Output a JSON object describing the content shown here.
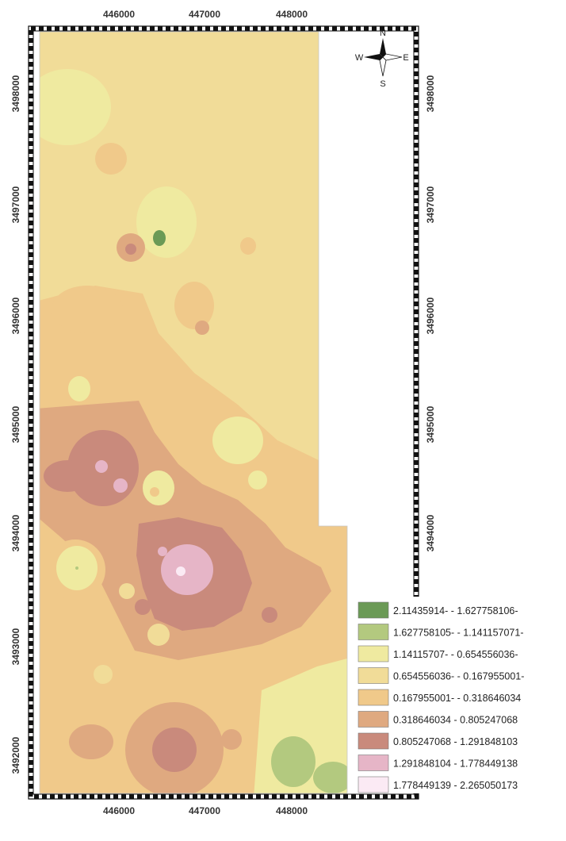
{
  "axes": {
    "x_ticks": [
      "446000",
      "447000",
      "448000"
    ],
    "y_ticks": [
      "3498000",
      "3497000",
      "3496000",
      "3495000",
      "3494000",
      "3493000",
      "3492000"
    ]
  },
  "compass": {
    "n": "N",
    "s": "S",
    "e": "E",
    "w": "W",
    "icon": "north-arrow-compass-icon"
  },
  "legend": [
    {
      "label": "2.11435914- - 1.627758106-",
      "color": "#6b9a56"
    },
    {
      "label": "1.627758105- - 1.141157071-",
      "color": "#b3c97f"
    },
    {
      "label": "1.14115707- - 0.654556036-",
      "color": "#efeaa0"
    },
    {
      "label": "0.654556036- - 0.167955001-",
      "color": "#f1dc98"
    },
    {
      "label": "0.167955001- - 0.318646034",
      "color": "#f0c98a"
    },
    {
      "label": "0.318646034 - 0.805247068",
      "color": "#dfa980"
    },
    {
      "label": "0.805247068 - 1.291848103",
      "color": "#c98a7c"
    },
    {
      "label": "1.291848104 - 1.778449138",
      "color": "#e6b5c7"
    },
    {
      "label": "1.778449139 - 2.265050173",
      "color": "#fbeaf4"
    }
  ]
}
